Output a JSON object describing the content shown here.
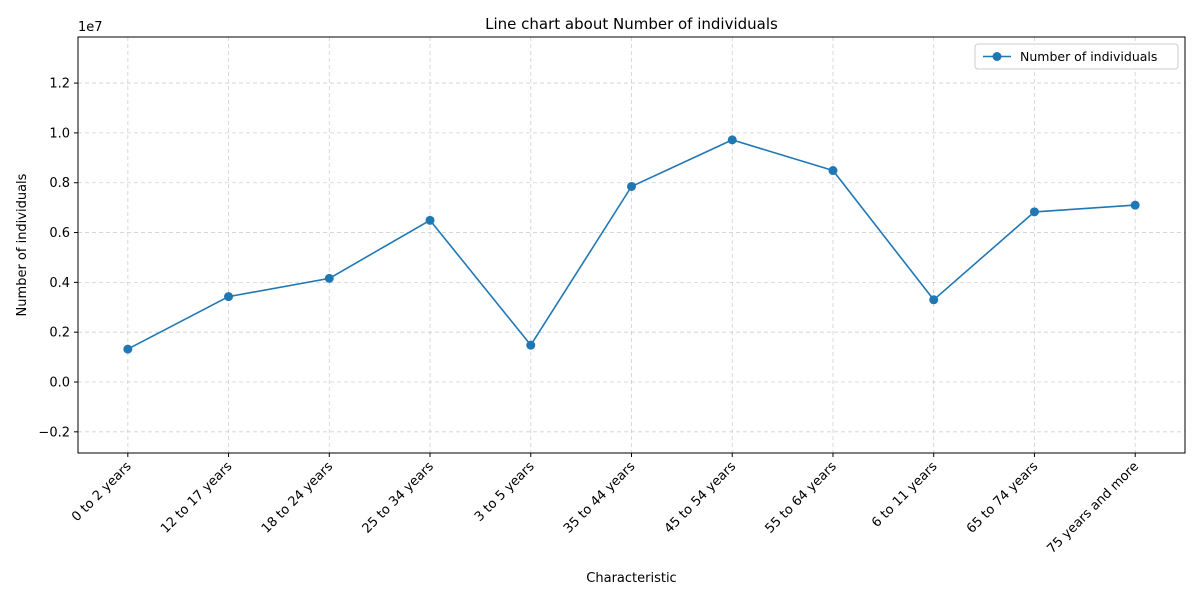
{
  "chart_data": {
    "type": "line",
    "title": "Line chart about Number of individuals",
    "xlabel": "Characteristic",
    "ylabel": "Number of individuals",
    "y_multiplier_label": "1e7",
    "categories": [
      "0 to 2 years",
      "12 to 17 years",
      "18 to 24 years",
      "25 to 34 years",
      "3 to 5 years",
      "35 to 44 years",
      "45 to 54 years",
      "55 to 64 years",
      "6 to 11 years",
      "65 to 74 years",
      "75 years and more"
    ],
    "series": [
      {
        "name": "Number of individuals",
        "color": "#1f77b4",
        "values": [
          1320000,
          3430000,
          4160000,
          6490000,
          1480000,
          7850000,
          9720000,
          8490000,
          3300000,
          6830000,
          7100000
        ]
      }
    ],
    "ylim": [
      -2850000,
      13850000
    ],
    "yticks": [
      -0.2,
      0.0,
      0.2,
      0.4,
      0.6,
      0.8,
      1.0,
      1.2
    ],
    "ytick_labels": [
      "−0.2",
      "0.0",
      "0.2",
      "0.4",
      "0.6",
      "0.8",
      "1.0",
      "1.2"
    ],
    "grid": true,
    "legend_position": "top-right"
  }
}
